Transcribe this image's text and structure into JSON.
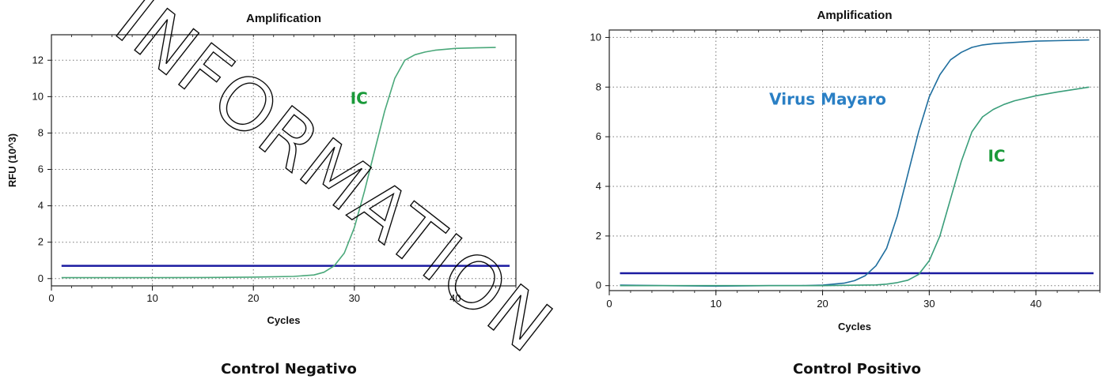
{
  "watermark_text": "INFORMATION",
  "chart_data": [
    {
      "type": "line",
      "title": "Amplification",
      "caption": "Control Negativo",
      "xlabel": "Cycles",
      "ylabel": "RFU (10^3)",
      "xlim": [
        0,
        46
      ],
      "ylim": [
        -0.4,
        13.4
      ],
      "xticks": [
        "0",
        "10",
        "20",
        "30",
        "40"
      ],
      "yticks": [
        "0",
        "2",
        "4",
        "6",
        "8",
        "10",
        "12"
      ],
      "grid": true,
      "threshold": {
        "value": 0.7,
        "color": "#1a1aa0"
      },
      "series": [
        {
          "name": "IC",
          "color": "#4aa87a",
          "label_color": "#1a9a3a",
          "label_at": [
            29.6,
            9.6
          ],
          "x": [
            1,
            5,
            10,
            15,
            20,
            24,
            26,
            27,
            28,
            29,
            30,
            31,
            32,
            33,
            34,
            35,
            36,
            37,
            38,
            40,
            42,
            44
          ],
          "y": [
            0.05,
            0.05,
            0.05,
            0.06,
            0.08,
            0.12,
            0.2,
            0.35,
            0.7,
            1.4,
            2.8,
            4.8,
            7.0,
            9.2,
            11.0,
            12.0,
            12.3,
            12.45,
            12.55,
            12.65,
            12.68,
            12.7
          ]
        }
      ]
    },
    {
      "type": "line",
      "title": "Amplification",
      "caption": "Control Positivo",
      "xlabel": "Cycles",
      "ylabel": "",
      "xlim": [
        0,
        46
      ],
      "ylim": [
        -0.2,
        10.3
      ],
      "xticks": [
        "0",
        "10",
        "20",
        "30",
        "40"
      ],
      "yticks": [
        "0",
        "2",
        "4",
        "6",
        "8",
        "10"
      ],
      "grid": true,
      "threshold": {
        "value": 0.5,
        "color": "#1a1aa0"
      },
      "series": [
        {
          "name": "Virus Mayaro",
          "color": "#1f6e9e",
          "label_color": "#2a7fc4",
          "label_at": [
            15,
            7.3
          ],
          "x": [
            1,
            5,
            10,
            15,
            18,
            20,
            22,
            23,
            24,
            25,
            26,
            27,
            28,
            29,
            30,
            31,
            32,
            33,
            34,
            35,
            36,
            38,
            40,
            42,
            45
          ],
          "y": [
            0.02,
            0.0,
            -0.02,
            0.0,
            0.0,
            0.02,
            0.1,
            0.2,
            0.4,
            0.8,
            1.5,
            2.8,
            4.5,
            6.2,
            7.6,
            8.5,
            9.1,
            9.4,
            9.6,
            9.7,
            9.75,
            9.8,
            9.85,
            9.87,
            9.9
          ]
        },
        {
          "name": "IC",
          "color": "#3a9e7a",
          "label_color": "#1a9a3a",
          "label_at": [
            35.5,
            5.0
          ],
          "x": [
            1,
            10,
            20,
            25,
            26,
            27,
            28,
            29,
            30,
            31,
            32,
            33,
            34,
            35,
            36,
            37,
            38,
            40,
            42,
            45
          ],
          "y": [
            0.0,
            0.0,
            0.0,
            0.03,
            0.06,
            0.12,
            0.22,
            0.45,
            1.0,
            2.0,
            3.5,
            5.0,
            6.2,
            6.8,
            7.1,
            7.3,
            7.45,
            7.65,
            7.8,
            8.0
          ]
        }
      ]
    }
  ]
}
